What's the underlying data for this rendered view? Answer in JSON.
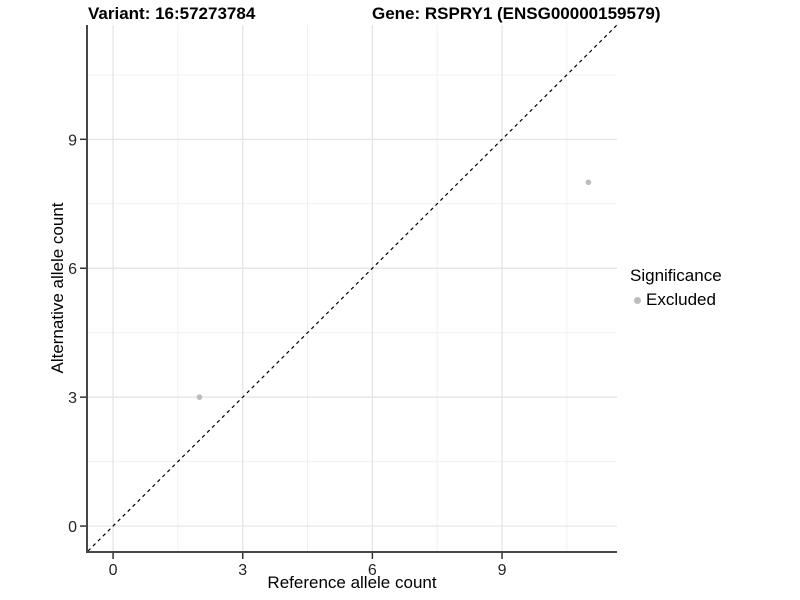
{
  "chart_data": {
    "type": "scatter",
    "titles": {
      "variant": "Variant: 16:57273784",
      "gene": "Gene: RSPRY1 (ENSG00000159579)"
    },
    "xlabel": "Reference allele count",
    "ylabel": "Alternative allele count",
    "xlim": [
      -0.58,
      11.66
    ],
    "ylim": [
      -0.58,
      11.66
    ],
    "x_ticks": [
      0,
      3,
      6,
      9
    ],
    "y_ticks": [
      0,
      3,
      6,
      9
    ],
    "x_minor_ticks": [
      1.5,
      4.5,
      7.5,
      10.5
    ],
    "y_minor_ticks": [
      1.5,
      4.5,
      7.5,
      10.5
    ],
    "grid": "on",
    "series": [
      {
        "name": "Excluded",
        "color": "#bdbdbd",
        "points": [
          {
            "x": 2,
            "y": 3
          },
          {
            "x": 11,
            "y": 8
          }
        ]
      }
    ],
    "identity_line": {
      "equation": "y = x",
      "style": "dashed",
      "color": "#000000"
    },
    "legend": {
      "position": "right",
      "title": "Significance",
      "items": [
        {
          "label": "Excluded",
          "color": "#bdbdbd"
        }
      ]
    }
  }
}
